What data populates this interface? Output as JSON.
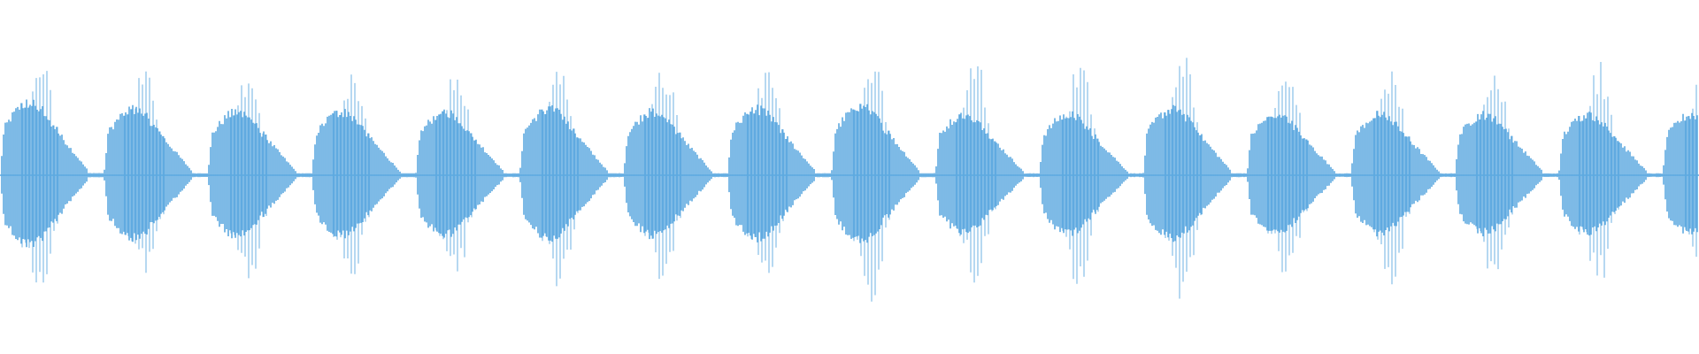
{
  "waveform": {
    "color": "#5DA9E0",
    "background": "#FFFFFF",
    "burst_count": 16,
    "bursts": [
      {
        "peak_up": 0.87,
        "peak_down": 0.84,
        "body": 0.55
      },
      {
        "peak_up": 0.78,
        "peak_down": 0.74,
        "body": 0.5
      },
      {
        "peak_up": 0.8,
        "peak_down": 0.8,
        "body": 0.48
      },
      {
        "peak_up": 0.8,
        "peak_down": 0.8,
        "body": 0.48
      },
      {
        "peak_up": 0.78,
        "peak_down": 0.76,
        "body": 0.48
      },
      {
        "peak_up": 0.87,
        "peak_down": 0.83,
        "body": 0.5
      },
      {
        "peak_up": 0.82,
        "peak_down": 0.8,
        "body": 0.48
      },
      {
        "peak_up": 0.82,
        "peak_down": 0.76,
        "body": 0.5
      },
      {
        "peak_up": 0.92,
        "peak_down": 0.9,
        "body": 0.52
      },
      {
        "peak_up": 0.85,
        "peak_down": 0.8,
        "body": 0.46
      },
      {
        "peak_up": 0.85,
        "peak_down": 0.84,
        "body": 0.46
      },
      {
        "peak_up": 0.92,
        "peak_down": 0.92,
        "body": 0.5
      },
      {
        "peak_up": 0.8,
        "peak_down": 0.78,
        "body": 0.46
      },
      {
        "peak_up": 0.8,
        "peak_down": 0.8,
        "body": 0.46
      },
      {
        "peak_up": 0.8,
        "peak_down": 0.8,
        "body": 0.46
      },
      {
        "peak_up": 0.82,
        "peak_down": 0.8,
        "body": 0.46
      }
    ]
  }
}
